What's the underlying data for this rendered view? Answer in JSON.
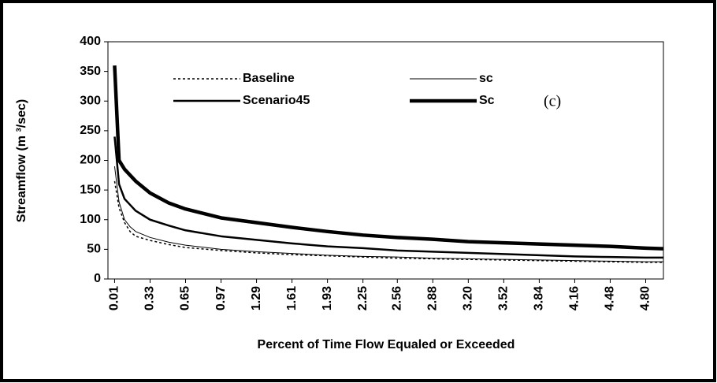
{
  "chart_data": {
    "type": "line",
    "y_label": "Streamflow (m ³/sec)",
    "x_label": "Percent of Time Flow Equaled or Exceeded",
    "annotation": "(c)",
    "x": [
      0.01,
      0.05,
      0.1,
      0.15,
      0.2,
      0.33,
      0.5,
      0.65,
      0.97,
      1.29,
      1.61,
      1.93,
      2.25,
      2.56,
      2.88,
      3.2,
      3.52,
      3.84,
      4.16,
      4.48,
      4.8,
      4.96
    ],
    "series": [
      {
        "name": "Baseline",
        "color": "#000000",
        "line_width": 1.5,
        "line_style": "dotted",
        "values": [
          165,
          120,
          95,
          80,
          72,
          65,
          58,
          53,
          48,
          44,
          41,
          39,
          37,
          35,
          34,
          33,
          32,
          31,
          30,
          29,
          28,
          28
        ]
      },
      {
        "name": "sc",
        "color": "#000000",
        "line_width": 1,
        "line_style": "solid",
        "values": [
          190,
          130,
          100,
          88,
          80,
          70,
          62,
          57,
          50,
          46,
          43,
          40,
          38,
          37,
          35,
          34,
          33,
          32,
          31,
          30,
          29,
          29
        ]
      },
      {
        "name": "Scenario45",
        "color": "#000000",
        "line_width": 2.5,
        "line_style": "solid",
        "values": [
          240,
          160,
          135,
          125,
          115,
          100,
          90,
          82,
          72,
          66,
          60,
          55,
          52,
          48,
          46,
          44,
          42,
          40,
          38,
          37,
          36,
          36
        ]
      },
      {
        "name": "Sc",
        "color": "#000000",
        "line_width": 4.5,
        "line_style": "solid",
        "values": [
          360,
          200,
          185,
          175,
          165,
          145,
          128,
          118,
          103,
          95,
          87,
          80,
          74,
          70,
          67,
          63,
          61,
          59,
          57,
          55,
          52,
          51
        ]
      }
    ],
    "xlim": [
      -0.05,
      4.96
    ],
    "xticks": [
      0.01,
      0.33,
      0.65,
      0.97,
      1.29,
      1.61,
      1.93,
      2.25,
      2.56,
      2.88,
      {
        "value": 3.2,
        "label": "3.20"
      },
      3.52,
      3.84,
      4.16,
      4.48,
      {
        "value": 4.8,
        "label": "4.80"
      }
    ],
    "ylim": [
      0,
      400
    ],
    "yticks": [
      0,
      50,
      100,
      150,
      200,
      250,
      300,
      350,
      400
    ],
    "grid": false
  }
}
